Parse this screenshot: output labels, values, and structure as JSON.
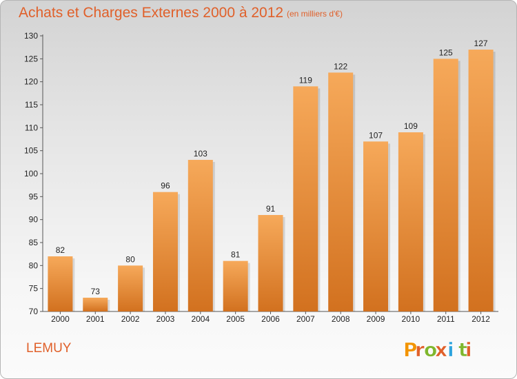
{
  "header": {
    "title": "Achats et Charges Externes 2000 à 2012",
    "subtitle": "(en milliers d'€)"
  },
  "footer": {
    "commune": "LEMUY",
    "logo_text": "Proxiti"
  },
  "colors": {
    "title": "#e0602a",
    "bar_light": "#f6a95a",
    "bar_dark": "#d2711f",
    "logo_letters": [
      "#f29400",
      "#e0602a",
      "#7fb72e",
      "#e0602a",
      "#2ea3dd",
      "#7fb72e",
      "#e0602a"
    ]
  },
  "chart_data": {
    "type": "bar",
    "title": "Achats et Charges Externes 2000 à 2012",
    "subtitle": "(en milliers d'€)",
    "categories": [
      "2000",
      "2001",
      "2002",
      "2003",
      "2004",
      "2005",
      "2006",
      "2007",
      "2008",
      "2009",
      "2010",
      "2011",
      "2012"
    ],
    "values": [
      82,
      73,
      80,
      96,
      103,
      81,
      91,
      119,
      122,
      107,
      109,
      125,
      127
    ],
    "ylim": [
      70,
      130
    ],
    "yticks": [
      70,
      75,
      80,
      85,
      90,
      95,
      100,
      105,
      110,
      115,
      120,
      125,
      130
    ],
    "xlabel": "",
    "ylabel": "",
    "grid": false,
    "legend": "none"
  }
}
